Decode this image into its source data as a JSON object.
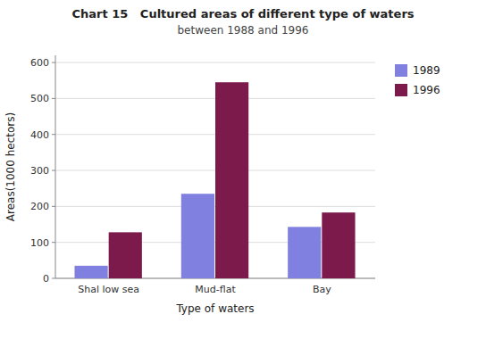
{
  "chart_data": {
    "type": "bar",
    "title": "Chart 15   Cultured areas of different type of waters",
    "subtitle": "between 1988 and 1996",
    "categories": [
      "Shal low sea",
      "Mud-flat",
      "Bay"
    ],
    "series": [
      {
        "name": "1989",
        "color": "#8080e0",
        "values": [
          35,
          235,
          143
        ]
      },
      {
        "name": "1996",
        "color": "#7b1a4b",
        "values": [
          128,
          545,
          183
        ]
      }
    ],
    "xlabel": "Type of waters",
    "ylabel": "Areas(1000 hectors)",
    "ylim": [
      0,
      620
    ],
    "yticks": [
      0,
      100,
      200,
      300,
      400,
      500,
      600
    ],
    "grid": true,
    "legend": "right"
  }
}
